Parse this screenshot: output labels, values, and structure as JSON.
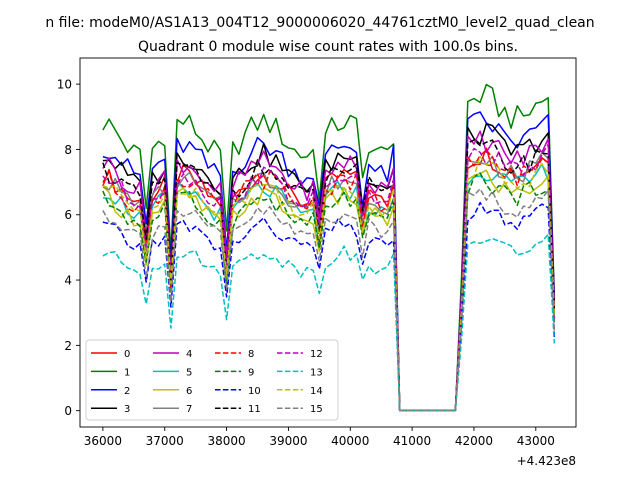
{
  "chart_data": {
    "type": "line",
    "suptitle": "n file: modeM0/AS1A13_004T12_9000006020_44761cztM0_level2_quad_clean",
    "title": "Quadrant 0 module wise count rates with 100.0s bins.",
    "xlabel": "",
    "ylabel": "",
    "x_offset_label": "+4.423e8",
    "xlim": [
      35630,
      43650
    ],
    "ylim": [
      -0.5,
      10.8
    ],
    "xticks": [
      36000,
      37000,
      38000,
      39000,
      40000,
      41000,
      42000,
      43000
    ],
    "xtick_labels": [
      "36000",
      "37000",
      "38000",
      "39000",
      "40000",
      "41000",
      "42000",
      "43000"
    ],
    "yticks": [
      0,
      2,
      4,
      6,
      8,
      10
    ],
    "ytick_labels": [
      "0",
      "2",
      "4",
      "6",
      "8",
      "10"
    ],
    "grid": false,
    "legend_placement": "lower-left",
    "x": [
      36000,
      36100,
      36200,
      36300,
      36400,
      36500,
      36600,
      36700,
      36800,
      36900,
      37000,
      37100,
      37200,
      37300,
      37400,
      37500,
      37600,
      37700,
      37800,
      37900,
      38000,
      38100,
      38200,
      38300,
      38400,
      38500,
      38600,
      38700,
      38800,
      38900,
      39000,
      39100,
      39200,
      39300,
      39400,
      39500,
      39600,
      39700,
      39800,
      39900,
      40000,
      40100,
      40200,
      40300,
      40400,
      40500,
      40600,
      40700,
      40800,
      40900,
      41000,
      41100,
      41200,
      41300,
      41400,
      41500,
      41600,
      41700,
      41800,
      41900,
      42000,
      42100,
      42200,
      42300,
      42400,
      42500,
      42600,
      42700,
      42800,
      42900,
      43000,
      43100,
      43200,
      43300
    ],
    "series": [
      {
        "name": "0",
        "color": "#ff0000",
        "dash": "solid",
        "base": 7.0
      },
      {
        "name": "1",
        "color": "#008000",
        "dash": "solid",
        "base": 8.6
      },
      {
        "name": "2",
        "color": "#0000ff",
        "dash": "solid",
        "base": 7.9
      },
      {
        "name": "3",
        "color": "#000000",
        "dash": "solid",
        "base": 7.6
      },
      {
        "name": "4",
        "color": "#bf00bf",
        "dash": "solid",
        "base": 7.4
      },
      {
        "name": "5",
        "color": "#00bfbf",
        "dash": "solid",
        "base": 6.6
      },
      {
        "name": "6",
        "color": "#bfbf00",
        "dash": "solid",
        "base": 6.4
      },
      {
        "name": "7",
        "color": "#808080",
        "dash": "solid",
        "base": 6.9
      },
      {
        "name": "8",
        "color": "#ff0000",
        "dash": "dashed",
        "base": 6.9
      },
      {
        "name": "9",
        "color": "#008000",
        "dash": "dashed",
        "base": 6.3
      },
      {
        "name": "10",
        "color": "#0000ff",
        "dash": "dashed",
        "base": 5.5
      },
      {
        "name": "11",
        "color": "#000000",
        "dash": "dashed",
        "base": 7.2
      },
      {
        "name": "12",
        "color": "#bf00bf",
        "dash": "dashed",
        "base": 7.0
      },
      {
        "name": "13",
        "color": "#00bfbf",
        "dash": "dashed",
        "base": 4.7
      },
      {
        "name": "14",
        "color": "#bfbf00",
        "dash": "dashed",
        "base": 6.7
      },
      {
        "name": "15",
        "color": "#808080",
        "dash": "dashed",
        "base": 5.9
      }
    ]
  }
}
